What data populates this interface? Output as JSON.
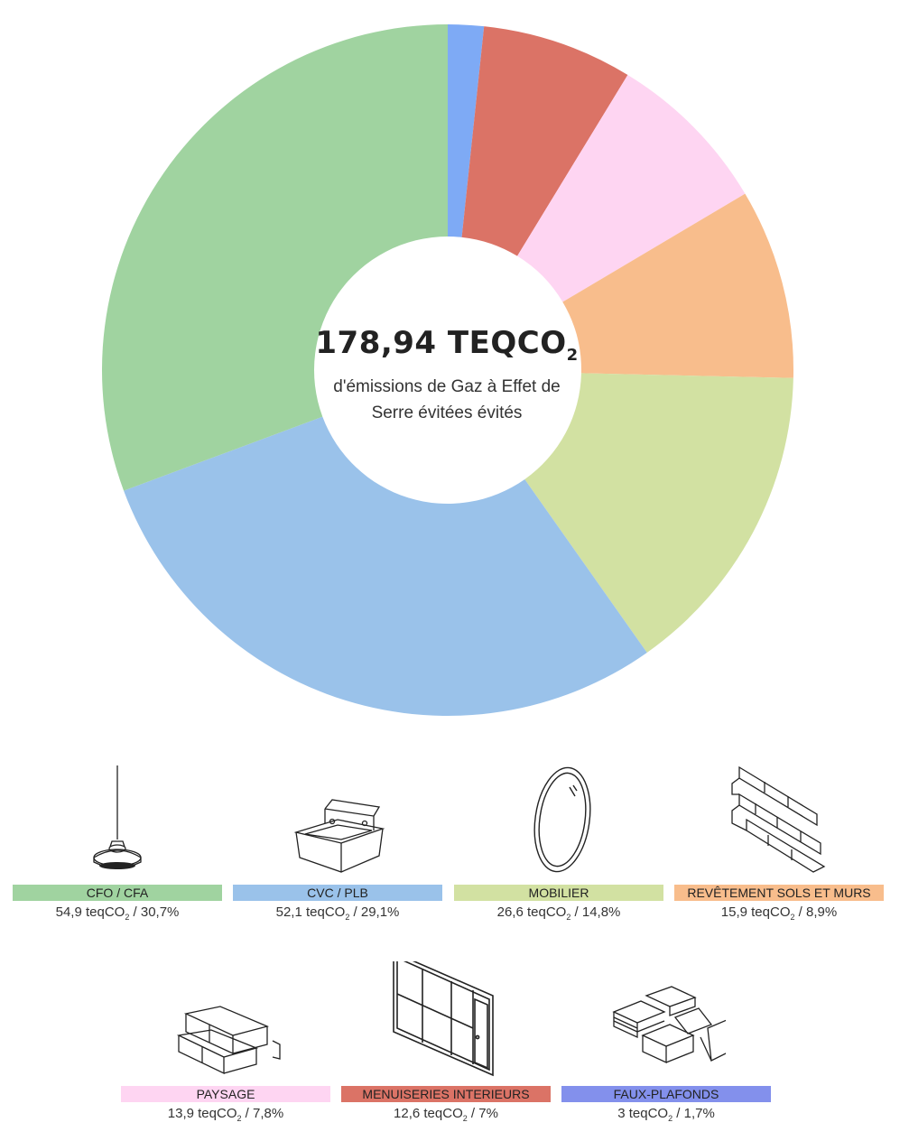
{
  "center": {
    "total_number": "178,94 TEQCO",
    "total_sub": "2",
    "subtitle": "d'émissions de Gaz à Effet de Serre évitées évités"
  },
  "chart_data": {
    "type": "pie",
    "donut": true,
    "start_angle_deg": 0,
    "direction": "clockwise",
    "order": [
      "FAUX-PLAFONDS",
      "MENUISERIES INTERIEURS",
      "PAYSAGE",
      "REVÊTEMENT SOLS ET MURS",
      "MOBILIER",
      "CVC / PLB",
      "CFO / CFA"
    ],
    "slices": [
      {
        "label": "CFO / CFA",
        "value": 54.9,
        "percent": 30.7,
        "color": "#a0d3a0"
      },
      {
        "label": "CVC / PLB",
        "value": 52.1,
        "percent": 29.1,
        "color": "#9ac2ea"
      },
      {
        "label": "MOBILIER",
        "value": 26.6,
        "percent": 14.8,
        "color": "#d2e1a2"
      },
      {
        "label": "REVÊTEMENT SOLS ET MURS",
        "value": 15.9,
        "percent": 8.9,
        "color": "#f8bd8c"
      },
      {
        "label": "PAYSAGE",
        "value": 13.9,
        "percent": 7.8,
        "color": "#fed5f2"
      },
      {
        "label": "MENUISERIES INTERIEURS",
        "value": 12.6,
        "percent": 7,
        "color": "#db7366"
      },
      {
        "label": "FAUX-PLAFONDS",
        "value": 3,
        "percent": 1.7,
        "color": "#7eaaf5"
      }
    ]
  },
  "legend": [
    {
      "label": "CFO / CFA",
      "value_pre": "54,9 teqCO",
      "value_sub": "2",
      "value_post": " / 30,7%",
      "color": "#a0d3a0",
      "icon": "pendant-lamp-icon"
    },
    {
      "label": "CVC / PLB",
      "value_pre": "52,1 teqCO",
      "value_sub": "2",
      "value_post": " / 29,1%",
      "color": "#9ac2ea",
      "icon": "sink-icon"
    },
    {
      "label": "MOBILIER",
      "value_pre": "26,6 teqCO",
      "value_sub": "2",
      "value_post": " / 14,8%",
      "color": "#d2e1a2",
      "icon": "mirror-icon"
    },
    {
      "label": "REVÊTEMENT SOLS ET MURS",
      "value_pre": "15,9 teqCO",
      "value_sub": "2",
      "value_post": " / 8,9%",
      "color": "#f8bd8c",
      "icon": "bricks-icon"
    },
    {
      "label": "PAYSAGE",
      "value_pre": "13,9 teqCO",
      "value_sub": "2",
      "value_post": " / 7,8%",
      "color": "#fed5f2",
      "icon": "stone-blocks-icon"
    },
    {
      "label": "MENUISERIES INTERIEURS",
      "value_pre": "12,6 teqCO",
      "value_sub": "2",
      "value_post": " / 7%",
      "color": "#db7366",
      "icon": "glass-partition-icon"
    },
    {
      "label": "FAUX-PLAFONDS",
      "value_pre": "3 teqCO",
      "value_sub": "2",
      "value_post": " / 1,7%",
      "color": "#8390ec",
      "icon": "ceiling-tiles-icon"
    }
  ]
}
